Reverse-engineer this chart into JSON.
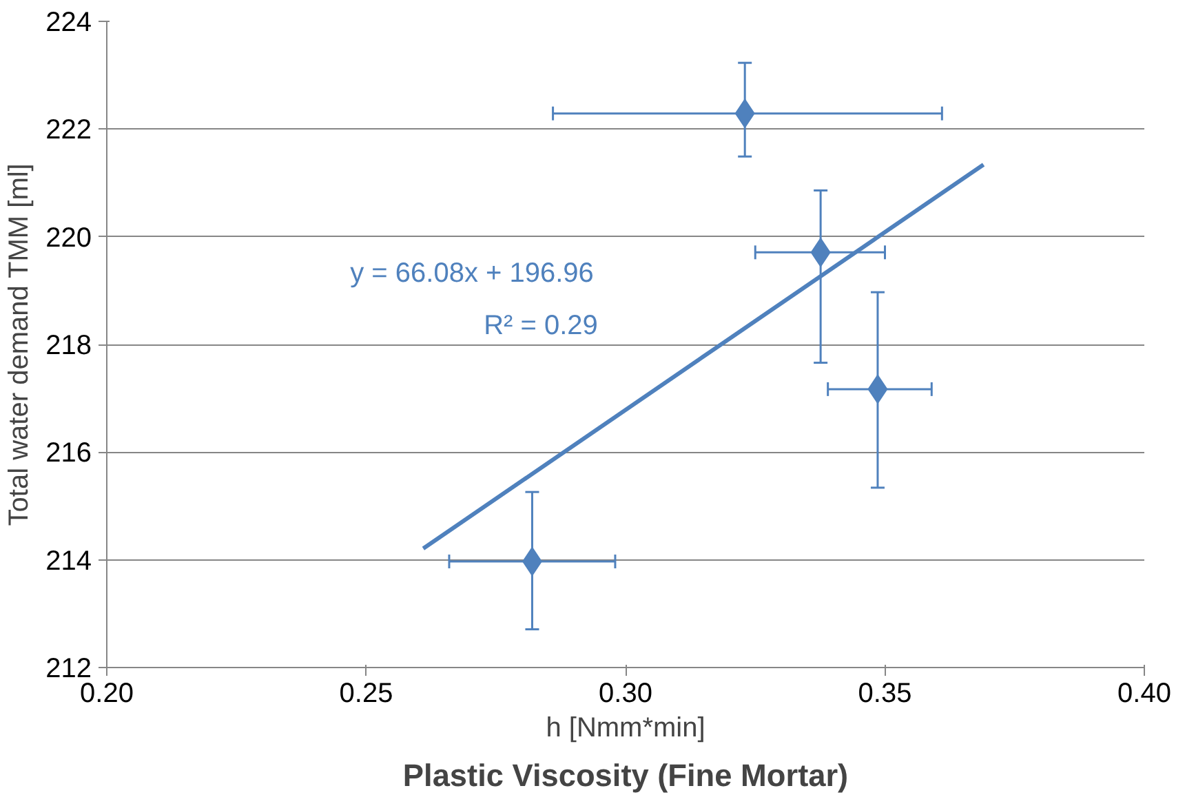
{
  "chart_data": {
    "type": "scatter",
    "title": "Plastic Viscosity (Fine Mortar)",
    "xlabel": "h [Nmm*min]",
    "ylabel": "Total water demand TMM [ml]",
    "x": [
      0.282,
      0.323,
      0.3376,
      0.3486
    ],
    "series": [
      {
        "color": "#4f81bd",
        "values": [
          213.97,
          222.29,
          219.71,
          217.17
        ],
        "marker": "diamond",
        "errors": [
          [
            212.71,
            215.26
          ],
          [
            221.49,
            223.23
          ],
          [
            217.66,
            220.86
          ],
          [
            215.34,
            218.97
          ]
        ],
        "xerrors": [
          [
            0.266,
            0.298
          ],
          [
            0.286,
            0.361
          ],
          [
            0.325,
            0.35
          ],
          [
            0.339,
            0.359
          ]
        ]
      },
      {
        "type": "line",
        "color": "#4f81bd",
        "x": [
          0.261,
          0.369
        ],
        "values": [
          214.21,
          221.34
        ]
      }
    ],
    "annotations": [
      "y = 66.08x + 196.96",
      "R² = 0.29"
    ],
    "xlim": [
      0.2,
      0.4
    ],
    "xticks": [
      {
        "value": 0.2,
        "label": "0.20"
      },
      {
        "value": 0.25,
        "label": "0.25"
      },
      {
        "value": 0.3,
        "label": "0.30"
      },
      {
        "value": 0.35,
        "label": "0.35"
      },
      {
        "value": 0.4,
        "label": "0.40"
      }
    ],
    "ylim": [
      212,
      224
    ],
    "yticks": [
      212,
      214,
      216,
      218,
      220,
      222,
      224
    ],
    "grid": "y"
  }
}
